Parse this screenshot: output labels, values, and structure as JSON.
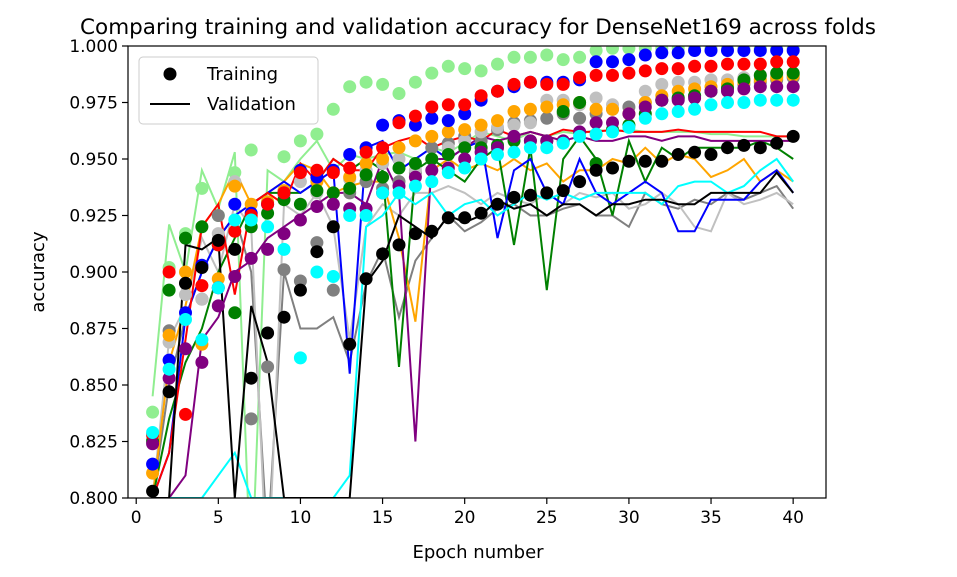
{
  "chart_data": {
    "type": "line",
    "title": "Comparing training and validation accuracy for DenseNet169 across folds",
    "xlabel": "Epoch number",
    "ylabel": "accuracy",
    "xlim": [
      -0.5,
      42
    ],
    "ylim": [
      0.8,
      1.0
    ],
    "x_ticks": [
      0,
      5,
      10,
      15,
      20,
      25,
      30,
      35,
      40
    ],
    "y_ticks": [
      0.8,
      0.825,
      0.85,
      0.875,
      0.9,
      0.925,
      0.95,
      0.975,
      1.0
    ],
    "y_tick_labels": [
      "0.800",
      "0.825",
      "0.850",
      "0.875",
      "0.900",
      "0.925",
      "0.950",
      "0.975",
      "1.000"
    ],
    "legend": {
      "position": "top-left",
      "entries": [
        {
          "label": "Training",
          "marker": "circle"
        },
        {
          "label": "Validation",
          "marker": "line"
        }
      ]
    },
    "grid": false,
    "epochs": [
      1,
      2,
      3,
      4,
      5,
      6,
      7,
      8,
      9,
      10,
      11,
      12,
      13,
      14,
      15,
      16,
      17,
      18,
      19,
      20,
      21,
      22,
      23,
      24,
      25,
      26,
      27,
      28,
      29,
      30,
      31,
      32,
      33,
      34,
      35,
      36,
      37,
      38,
      39,
      40
    ],
    "series": [
      {
        "color": "#90ee90",
        "training": [
          0.838,
          0.902,
          0.917,
          0.937,
          0.925,
          0.944,
          0.954,
          0.931,
          0.951,
          0.958,
          0.961,
          0.972,
          0.982,
          0.984,
          0.983,
          0.979,
          0.984,
          0.988,
          0.991,
          0.99,
          0.989,
          0.992,
          0.995,
          0.995,
          0.996,
          0.994,
          0.995,
          0.998,
          0.999,
          0.999,
          0.999,
          0.999,
          0.999,
          0.999,
          0.999,
          0.999,
          0.999,
          0.999,
          0.999,
          0.999
        ],
        "validation": [
          0.845,
          0.921,
          0.9,
          0.945,
          0.928,
          0.953,
          0.76,
          0.945,
          0.94,
          0.95,
          0.958,
          0.945,
          0.952,
          0.95,
          0.952,
          0.953,
          0.95,
          0.955,
          0.953,
          0.957,
          0.962,
          0.96,
          0.958,
          0.962,
          0.96,
          0.962,
          0.961,
          0.963,
          0.962,
          0.963,
          0.962,
          0.962,
          0.962,
          0.962,
          0.961,
          0.961,
          0.96,
          0.96,
          0.96,
          0.96
        ]
      },
      {
        "color": "#808080",
        "training": [
          0.826,
          0.874,
          0.895,
          0.888,
          0.925,
          0.939,
          0.835,
          0.858,
          0.901,
          0.896,
          0.913,
          0.892,
          0.935,
          0.94,
          0.937,
          0.94,
          0.944,
          0.955,
          0.957,
          0.96,
          0.958,
          0.963,
          0.966,
          0.967,
          0.968,
          0.97,
          0.968,
          0.97,
          0.972,
          0.973,
          0.975,
          0.976,
          0.977,
          0.978,
          0.98,
          0.982,
          0.983,
          0.984,
          0.985,
          0.986
        ],
        "validation": [
          0.8,
          0.85,
          0.88,
          0.9,
          0.915,
          0.925,
          0.9,
          0.78,
          0.9,
          0.875,
          0.875,
          0.88,
          0.86,
          0.895,
          0.91,
          0.88,
          0.905,
          0.915,
          0.925,
          0.918,
          0.922,
          0.928,
          0.93,
          0.925,
          0.925,
          0.928,
          0.93,
          0.925,
          0.925,
          0.92,
          0.935,
          0.93,
          0.928,
          0.932,
          0.93,
          0.935,
          0.932,
          0.935,
          0.938,
          0.928
        ]
      },
      {
        "color": "#c0c0c0",
        "training": [
          0.827,
          0.869,
          0.89,
          0.888,
          0.917,
          0.94,
          0.924,
          0.93,
          0.934,
          0.94,
          0.935,
          0.93,
          0.941,
          0.945,
          0.948,
          0.95,
          0.945,
          0.95,
          0.955,
          0.958,
          0.962,
          0.964,
          0.965,
          0.966,
          0.976,
          0.976,
          0.974,
          0.977,
          0.974,
          0.97,
          0.98,
          0.983,
          0.984,
          0.984,
          0.985,
          0.985,
          0.986,
          0.987,
          0.987,
          0.987
        ],
        "validation": [
          0.8,
          0.87,
          0.885,
          0.915,
          0.9,
          0.93,
          0.92,
          0.76,
          0.93,
          0.925,
          0.935,
          0.92,
          0.87,
          0.92,
          0.93,
          0.925,
          0.935,
          0.935,
          0.938,
          0.935,
          0.93,
          0.935,
          0.932,
          0.93,
          0.935,
          0.93,
          0.935,
          0.933,
          0.935,
          0.928,
          0.93,
          0.935,
          0.93,
          0.92,
          0.918,
          0.935,
          0.93,
          0.932,
          0.935,
          0.93
        ]
      },
      {
        "color": "#ffa500",
        "training": [
          0.811,
          0.872,
          0.9,
          0.868,
          0.897,
          0.938,
          0.93,
          0.931,
          0.936,
          0.945,
          0.94,
          0.935,
          0.942,
          0.948,
          0.95,
          0.955,
          0.958,
          0.96,
          0.962,
          0.963,
          0.965,
          0.967,
          0.971,
          0.972,
          0.973,
          0.974,
          0.975,
          0.972,
          0.972,
          0.97,
          0.975,
          0.978,
          0.98,
          0.981,
          0.982,
          0.983,
          0.984,
          0.985,
          0.986,
          0.987
        ],
        "validation": [
          0.8,
          0.86,
          0.885,
          0.92,
          0.93,
          0.945,
          0.93,
          0.935,
          0.94,
          0.948,
          0.945,
          0.935,
          0.938,
          0.94,
          0.94,
          0.915,
          0.878,
          0.945,
          0.95,
          0.945,
          0.948,
          0.945,
          0.95,
          0.945,
          0.948,
          0.94,
          0.945,
          0.945,
          0.95,
          0.948,
          0.955,
          0.948,
          0.952,
          0.95,
          0.942,
          0.945,
          0.95,
          0.94,
          0.945,
          0.94
        ]
      },
      {
        "color": "#008000",
        "training": [
          0.825,
          0.892,
          0.915,
          0.92,
          0.912,
          0.882,
          0.92,
          0.926,
          0.932,
          0.93,
          0.936,
          0.935,
          0.937,
          0.943,
          0.942,
          0.946,
          0.948,
          0.95,
          0.952,
          0.955,
          0.955,
          0.956,
          0.958,
          0.958,
          0.958,
          0.971,
          0.975,
          0.948,
          0.963,
          0.965,
          0.97,
          0.976,
          0.977,
          0.978,
          0.98,
          0.981,
          0.985,
          0.987,
          0.988,
          0.988
        ],
        "validation": [
          0.8,
          0.835,
          0.86,
          0.875,
          0.9,
          0.915,
          0.93,
          0.935,
          0.935,
          0.935,
          0.94,
          0.95,
          0.945,
          0.95,
          0.945,
          0.858,
          0.945,
          0.95,
          0.945,
          0.94,
          0.95,
          0.955,
          0.912,
          0.955,
          0.892,
          0.95,
          0.96,
          0.95,
          0.925,
          0.958,
          0.94,
          0.955,
          0.95,
          0.955,
          0.955,
          0.955,
          0.955,
          0.958,
          0.955,
          0.95
        ]
      },
      {
        "color": "#0000ff",
        "training": [
          0.815,
          0.861,
          0.882,
          0.903,
          0.893,
          0.93,
          0.926,
          0.93,
          0.935,
          0.945,
          0.942,
          0.945,
          0.952,
          0.955,
          0.965,
          0.967,
          0.965,
          0.968,
          0.967,
          0.97,
          0.976,
          0.98,
          0.982,
          0.984,
          0.984,
          0.984,
          0.985,
          0.993,
          0.993,
          0.994,
          0.996,
          0.997,
          0.997,
          0.998,
          0.998,
          0.998,
          0.998,
          0.998,
          0.998,
          0.998
        ],
        "validation": [
          0.8,
          0.82,
          0.88,
          0.9,
          0.915,
          0.925,
          0.93,
          0.935,
          0.94,
          0.935,
          0.94,
          0.945,
          0.855,
          0.955,
          0.958,
          0.945,
          0.95,
          0.955,
          0.95,
          0.955,
          0.958,
          0.915,
          0.945,
          0.95,
          0.935,
          0.93,
          0.95,
          0.935,
          0.93,
          0.935,
          0.94,
          0.935,
          0.918,
          0.918,
          0.932,
          0.932,
          0.932,
          0.94,
          0.945,
          0.935
        ]
      },
      {
        "color": "#ff0000",
        "training": [
          0.828,
          0.9,
          0.837,
          0.894,
          0.912,
          0.918,
          0.925,
          0.93,
          0.935,
          0.944,
          0.945,
          0.944,
          0.946,
          0.953,
          0.955,
          0.966,
          0.969,
          0.973,
          0.974,
          0.974,
          0.978,
          0.98,
          0.983,
          0.984,
          0.983,
          0.983,
          0.986,
          0.987,
          0.987,
          0.988,
          0.989,
          0.99,
          0.99,
          0.991,
          0.991,
          0.992,
          0.992,
          0.992,
          0.993,
          0.993
        ],
        "validation": [
          0.8,
          0.82,
          0.87,
          0.92,
          0.93,
          0.89,
          0.93,
          0.935,
          0.93,
          0.948,
          0.94,
          0.95,
          0.945,
          0.945,
          0.955,
          0.958,
          0.96,
          0.955,
          0.958,
          0.96,
          0.958,
          0.963,
          0.96,
          0.962,
          0.96,
          0.963,
          0.962,
          0.962,
          0.963,
          0.962,
          0.962,
          0.962,
          0.963,
          0.962,
          0.962,
          0.962,
          0.962,
          0.962,
          0.96,
          0.96
        ]
      },
      {
        "color": "#800080",
        "training": [
          0.824,
          0.853,
          0.866,
          0.86,
          0.885,
          0.898,
          0.906,
          0.91,
          0.917,
          0.923,
          0.929,
          0.93,
          0.928,
          0.928,
          0.935,
          0.938,
          0.942,
          0.945,
          0.946,
          0.95,
          0.953,
          0.955,
          0.96,
          0.958,
          0.958,
          0.958,
          0.962,
          0.966,
          0.966,
          0.97,
          0.973,
          0.976,
          0.976,
          0.977,
          0.98,
          0.98,
          0.981,
          0.982,
          0.982,
          0.982
        ],
        "validation": [
          0.8,
          0.8,
          0.81,
          0.87,
          0.88,
          0.9,
          0.905,
          0.915,
          0.92,
          0.925,
          0.93,
          0.935,
          0.935,
          0.93,
          0.95,
          0.935,
          0.825,
          0.95,
          0.95,
          0.955,
          0.96,
          0.958,
          0.96,
          0.962,
          0.96,
          0.958,
          0.96,
          0.958,
          0.958,
          0.96,
          0.96,
          0.958,
          0.96,
          0.96,
          0.958,
          0.958,
          0.958,
          0.958,
          0.958,
          0.958
        ]
      },
      {
        "color": "#00ffff",
        "training": [
          0.829,
          0.857,
          0.879,
          0.87,
          0.893,
          0.923,
          0.923,
          0.92,
          0.91,
          0.862,
          0.9,
          0.898,
          0.925,
          0.925,
          0.935,
          0.935,
          0.938,
          0.94,
          0.944,
          0.946,
          0.95,
          0.952,
          0.953,
          0.955,
          0.955,
          0.957,
          0.96,
          0.961,
          0.962,
          0.964,
          0.968,
          0.97,
          0.971,
          0.972,
          0.974,
          0.975,
          0.975,
          0.976,
          0.976,
          0.976
        ],
        "validation": [
          0.8,
          0.8,
          0.8,
          0.8,
          0.81,
          0.82,
          0.8,
          0.8,
          0.8,
          0.8,
          0.8,
          0.8,
          0.81,
          0.92,
          0.925,
          0.935,
          0.93,
          0.935,
          0.925,
          0.93,
          0.932,
          0.925,
          0.93,
          0.935,
          0.932,
          0.935,
          0.932,
          0.935,
          0.935,
          0.935,
          0.935,
          0.93,
          0.938,
          0.94,
          0.94,
          0.935,
          0.938,
          0.945,
          0.95,
          0.94
        ]
      },
      {
        "color": "#000000",
        "training": [
          0.803,
          0.847,
          0.895,
          0.902,
          0.914,
          0.91,
          0.853,
          0.873,
          0.88,
          0.892,
          0.909,
          0.92,
          0.868,
          0.897,
          0.908,
          0.912,
          0.917,
          0.918,
          0.924,
          0.924,
          0.926,
          0.93,
          0.933,
          0.934,
          0.935,
          0.936,
          0.94,
          0.945,
          0.946,
          0.949,
          0.949,
          0.949,
          0.952,
          0.953,
          0.952,
          0.955,
          0.956,
          0.955,
          0.957,
          0.96
        ],
        "validation": [
          0.8,
          0.8,
          0.912,
          0.91,
          0.915,
          0.8,
          0.885,
          0.86,
          0.8,
          0.8,
          0.8,
          0.8,
          0.8,
          0.895,
          0.905,
          0.925,
          0.92,
          0.915,
          0.925,
          0.922,
          0.925,
          0.932,
          0.928,
          0.93,
          0.925,
          0.93,
          0.93,
          0.925,
          0.93,
          0.93,
          0.932,
          0.932,
          0.93,
          0.93,
          0.935,
          0.935,
          0.935,
          0.935,
          0.944,
          0.935
        ]
      }
    ]
  }
}
